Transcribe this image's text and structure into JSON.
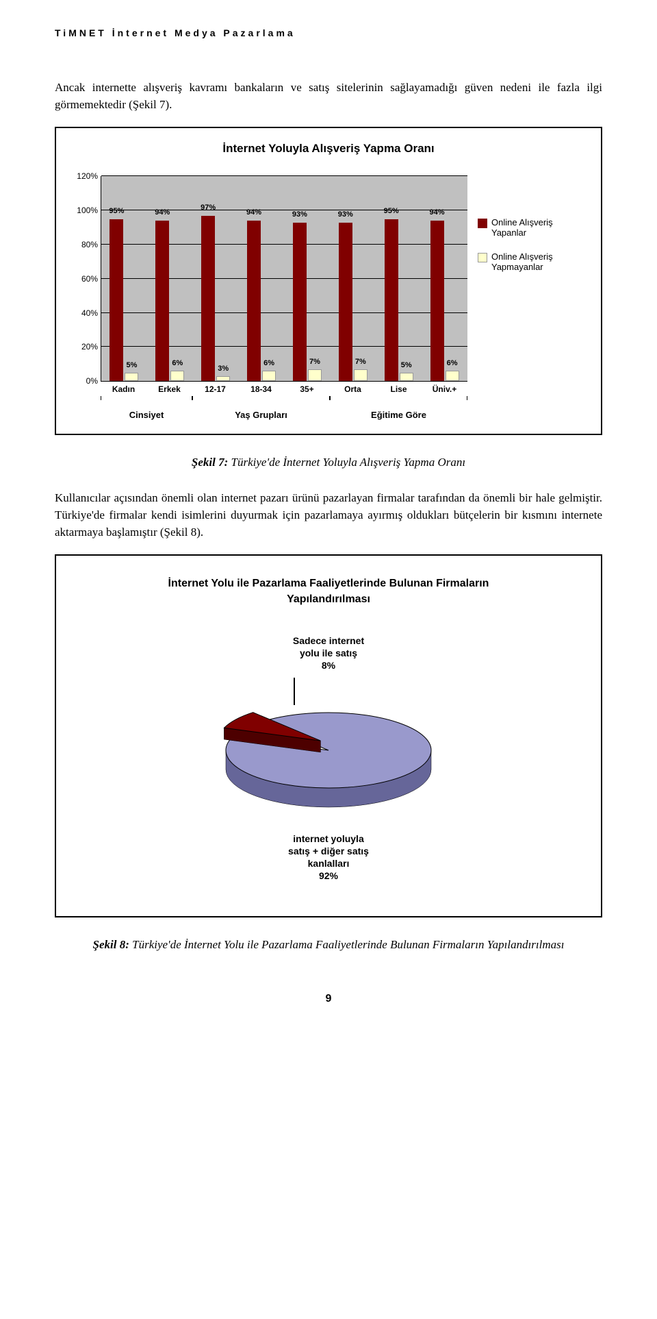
{
  "header": "TiMNET İnternet Medya Pazarlama",
  "para1": "Ancak internette alışveriş kavramı bankaların ve satış sitelerinin sağlayamadığı güven nedeni ile fazla ilgi görmemektedir (Şekil 7).",
  "chart1": {
    "title": "İnternet Yoluyla Alışveriş Yapma Oranı",
    "ylim": [
      0,
      120
    ],
    "ytick_step": 20,
    "ytick_labels": [
      "0%",
      "20%",
      "40%",
      "60%",
      "80%",
      "100%",
      "120%"
    ],
    "background_color": "#c0c0c0",
    "series_colors": [
      "#800000",
      "#ffffcc"
    ],
    "legend": [
      "Online Alışveriş Yapanlar",
      "Online Alışveriş Yapmayanlar"
    ],
    "categories": [
      "Kadın",
      "Erkek",
      "12-17",
      "18-34",
      "35+",
      "Orta",
      "Lise",
      "Üniv.+"
    ],
    "values_yes": [
      5,
      6,
      3,
      6,
      7,
      7,
      5,
      6
    ],
    "values_no": [
      95,
      94,
      97,
      94,
      93,
      93,
      95,
      94
    ],
    "group_labels": [
      "Cinsiyet",
      "Yaş Grupları",
      "Eğitime Göre"
    ],
    "group_spans": [
      2,
      3,
      3
    ]
  },
  "caption1_bold": "Şekil 7:",
  "caption1_italic": " Türkiye'de İnternet Yoluyla Alışveriş Yapma Oranı",
  "para2": "Kullanıcılar açısından önemli olan internet pazarı ürünü pazarlayan firmalar tarafından da önemli bir hale gelmiştir. Türkiye'de firmalar kendi isimlerini duyurmak için pazarlamaya ayırmış oldukları bütçelerin bir kısmını internete aktarmaya başlamıştır (Şekil 8).",
  "chart2": {
    "title_line1": "İnternet Yolu ile Pazarlama Faaliyetlerinde Bulunan Firmaların",
    "title_line2": "Yapılandırılması",
    "slice1_label_l1": "Sadece internet",
    "slice1_label_l2": "yolu ile satış",
    "slice1_label_l3": "8%",
    "slice2_label_l1": "internet yoluyla",
    "slice2_label_l2": "satış + diğer satış",
    "slice2_label_l3": "kanlalları",
    "slice2_label_l4": "92%",
    "slice1_pct": 8,
    "slice2_pct": 92,
    "slice1_color": "#800000",
    "slice2_color": "#9999cc",
    "side_color": "#666699"
  },
  "caption2_bold": "Şekil 8:",
  "caption2_italic": " Türkiye'de İnternet Yolu ile Pazarlama Faaliyetlerinde Bulunan Firmaların Yapılandırılması",
  "page_number": "9"
}
